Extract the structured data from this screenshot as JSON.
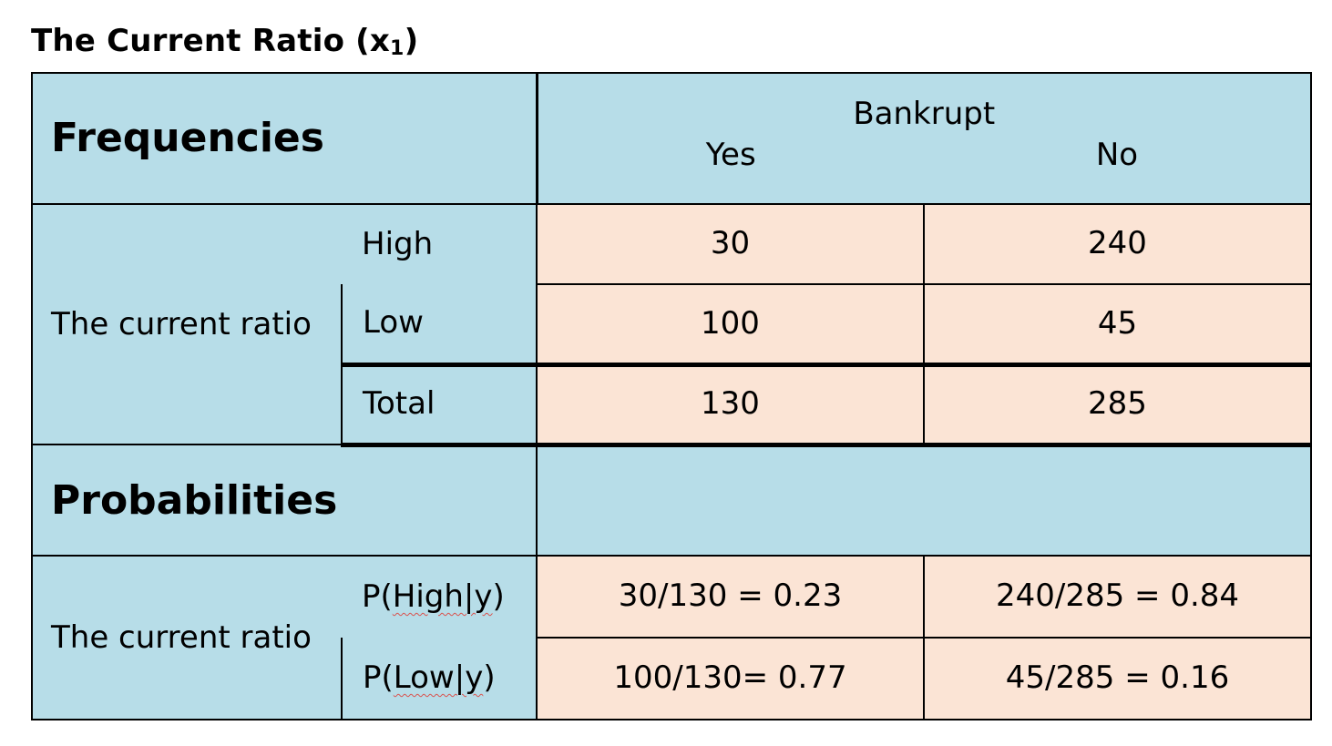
{
  "title": {
    "main": "The Current Ratio (x",
    "subscript": "1",
    "close": ")"
  },
  "frequencies": {
    "section_label": "Frequencies",
    "column_group": "Bankrupt",
    "columns": [
      "Yes",
      "No"
    ],
    "row_group_label": "The current ratio",
    "rows": [
      {
        "label": "High",
        "yes": "30",
        "no": "240"
      },
      {
        "label": "Low",
        "yes": "100",
        "no": "45"
      }
    ],
    "total": {
      "label": "Total",
      "yes": "130",
      "no": "285"
    }
  },
  "probabilities": {
    "section_label": "Probabilities",
    "row_group_label": "The current ratio",
    "rows": [
      {
        "label_prefix": "P(",
        "label_mid": "High|y",
        "label_suffix": ")",
        "yes": "30/130 = 0.23",
        "no": "240/285 = 0.84"
      },
      {
        "label_prefix": "P(",
        "label_mid": "Low|y",
        "label_suffix": ")",
        "yes": "100/130= 0.77",
        "no": "45/285 = 0.16"
      }
    ]
  },
  "colors": {
    "header_blue": "#b7dde8",
    "cell_peach": "#fbe4d5",
    "border": "#000000"
  }
}
